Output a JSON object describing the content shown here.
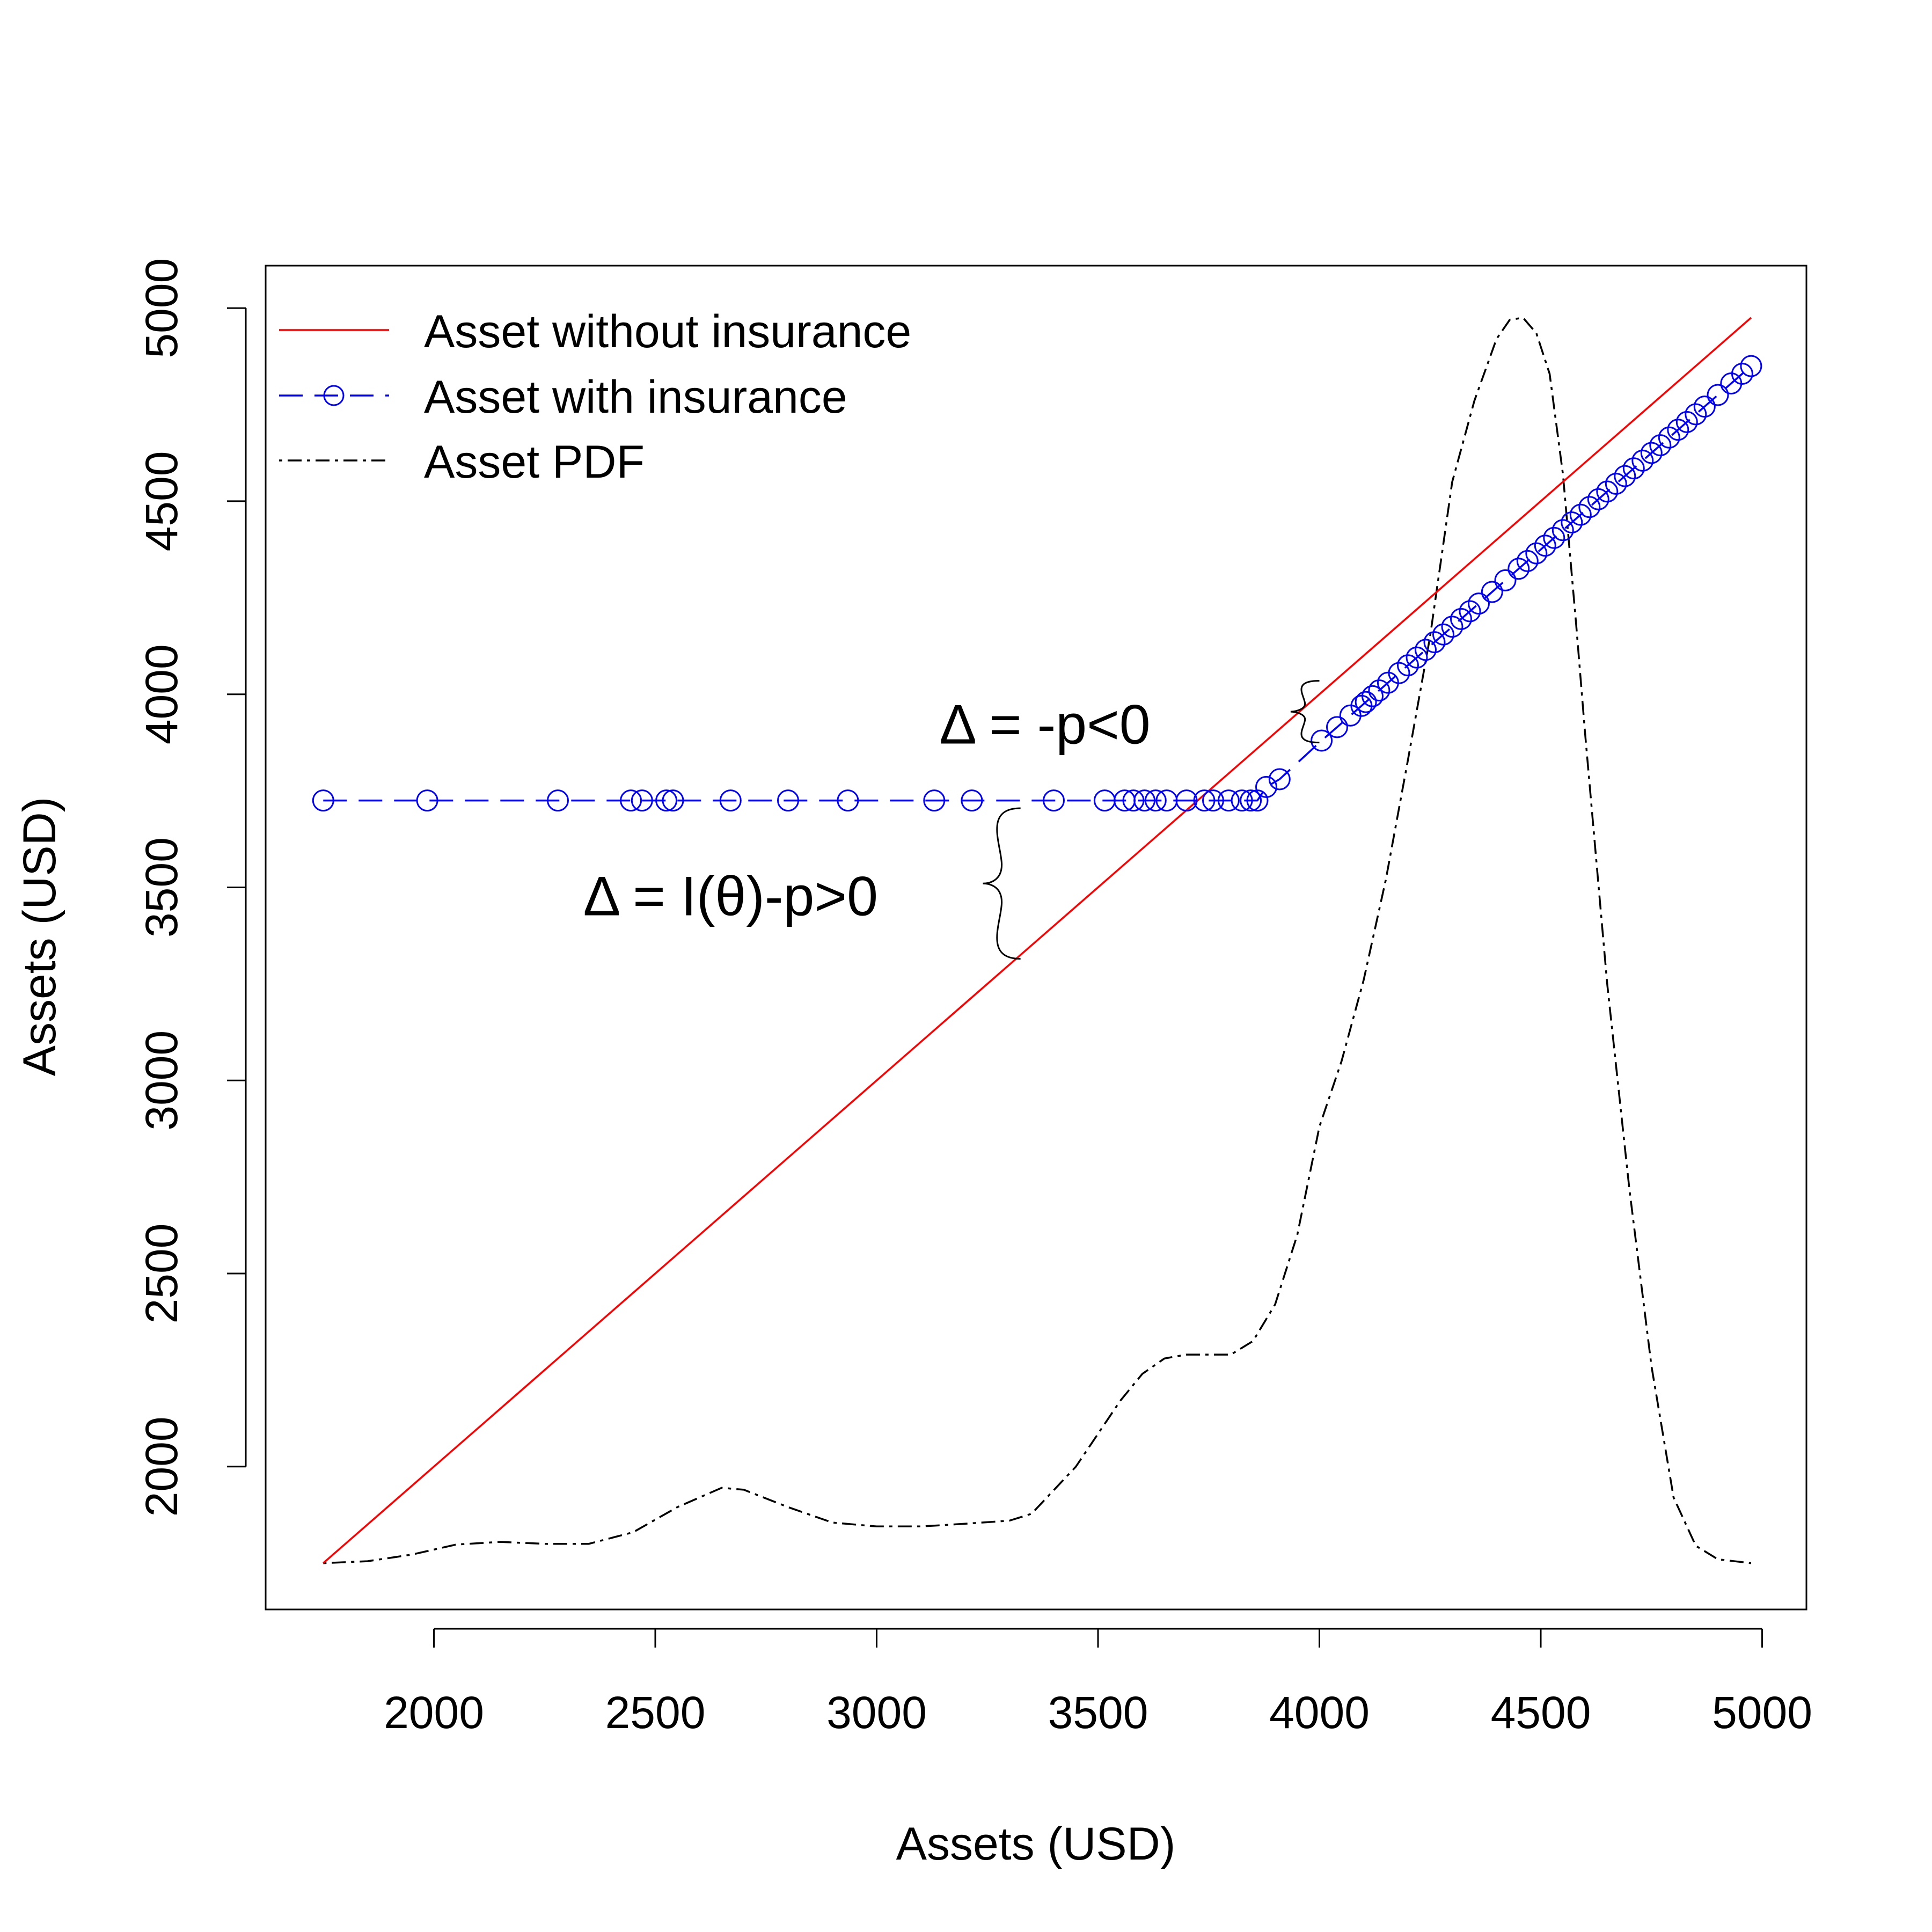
{
  "chart_data": {
    "type": "line",
    "xlabel": "Assets (USD)",
    "ylabel": "Assets (USD)",
    "xlim": [
      1620,
      5100
    ],
    "ylim": [
      1630,
      5110
    ],
    "x_ticks": [
      2000,
      2500,
      3000,
      3500,
      4000,
      4500,
      5000
    ],
    "y_ticks": [
      2000,
      2500,
      3000,
      3500,
      4000,
      4500,
      5000
    ],
    "grid": false,
    "legend": {
      "position": "top-left",
      "entries": [
        "Asset without insurance",
        "Asset with insurance",
        "Asset PDF"
      ]
    },
    "series": [
      {
        "name": "Asset without insurance",
        "color": "#ff0000",
        "line_style": "solid",
        "x": [
          1750,
          4975
        ],
        "y": [
          1750,
          4975
        ]
      },
      {
        "name": "Asset with insurance",
        "color": "#0000ff",
        "line_style": "dashed",
        "marker": "open-circle",
        "x": [
          1750,
          1985,
          2280,
          2445,
          2470,
          2525,
          2540,
          2670,
          2800,
          2935,
          3130,
          3215,
          3400,
          3515,
          3560,
          3580,
          3605,
          3630,
          3655,
          3700,
          3740,
          3760,
          3795,
          3825,
          3845,
          3860,
          3880,
          3910,
          4005,
          4040,
          4070,
          4095,
          4105,
          4120,
          4135,
          4155,
          4180,
          4200,
          4220,
          4240,
          4260,
          4280,
          4300,
          4320,
          4340,
          4360,
          4390,
          4420,
          4450,
          4470,
          4490,
          4510,
          4530,
          4550,
          4570,
          4590,
          4610,
          4630,
          4650,
          4670,
          4690,
          4710,
          4730,
          4750,
          4770,
          4790,
          4810,
          4830,
          4850,
          4870,
          4900,
          4930,
          4955,
          4975
        ],
        "y": [
          3725,
          3725,
          3725,
          3725,
          3725,
          3725,
          3725,
          3725,
          3725,
          3725,
          3725,
          3725,
          3725,
          3725,
          3725,
          3725,
          3725,
          3725,
          3725,
          3725,
          3725,
          3725,
          3725,
          3725,
          3725,
          3725,
          3760,
          3780,
          3880,
          3915,
          3945,
          3970,
          3980,
          3995,
          4010,
          4030,
          4055,
          4075,
          4095,
          4115,
          4135,
          4155,
          4175,
          4195,
          4215,
          4235,
          4265,
          4295,
          4325,
          4345,
          4365,
          4385,
          4405,
          4425,
          4445,
          4465,
          4485,
          4505,
          4525,
          4545,
          4565,
          4585,
          4605,
          4625,
          4645,
          4665,
          4685,
          4705,
          4725,
          4745,
          4775,
          4805,
          4830,
          4850
        ]
      },
      {
        "name": "Asset PDF",
        "color": "#000000",
        "line_style": "dotdash",
        "x": [
          1750,
          1850,
          1950,
          2050,
          2150,
          2250,
          2350,
          2450,
          2550,
          2650,
          2700,
          2800,
          2900,
          3000,
          3100,
          3200,
          3300,
          3350,
          3450,
          3550,
          3600,
          3650,
          3700,
          3750,
          3800,
          3850,
          3900,
          3950,
          4000,
          4050,
          4100,
          4150,
          4200,
          4250,
          4300,
          4350,
          4400,
          4430,
          4460,
          4490,
          4520,
          4550,
          4580,
          4600,
          4650,
          4700,
          4750,
          4800,
          4850,
          4900,
          4975
        ],
        "y": [
          1750,
          1755,
          1772,
          1798,
          1805,
          1800,
          1800,
          1830,
          1895,
          1945,
          1940,
          1895,
          1855,
          1845,
          1845,
          1852,
          1860,
          1878,
          2000,
          2170,
          2240,
          2280,
          2290,
          2290,
          2290,
          2325,
          2420,
          2600,
          2880,
          3050,
          3260,
          3520,
          3830,
          4150,
          4550,
          4760,
          4920,
          4970,
          4975,
          4935,
          4830,
          4570,
          4180,
          3900,
          3250,
          2720,
          2260,
          1920,
          1795,
          1760,
          1750
        ]
      }
    ],
    "annotations": [
      {
        "text": "Δ = -p<0",
        "x": 3380,
        "y": 3920
      },
      {
        "text": "Δ = I(θ)-p>0",
        "x": 2670,
        "y": 3475
      }
    ]
  }
}
